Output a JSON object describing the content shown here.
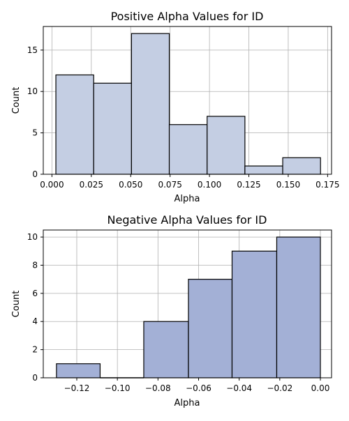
{
  "chart_data": [
    {
      "type": "bar",
      "title": "Positive Alpha Values for ID",
      "xlabel": "Alpha",
      "ylabel": "Count",
      "xlim": [
        -0.0055,
        0.1775
      ],
      "ylim": [
        0,
        17.85
      ],
      "xticks": [
        0.0,
        0.025,
        0.05,
        0.075,
        0.1,
        0.125,
        0.15,
        0.175
      ],
      "xtick_labels": [
        "0.000",
        "0.025",
        "0.050",
        "0.075",
        "0.100",
        "0.125",
        "0.150",
        "0.175"
      ],
      "yticks": [
        0,
        5,
        10,
        15
      ],
      "ytick_labels": [
        "0",
        "5",
        "10",
        "15"
      ],
      "grid": true,
      "bar_color": "#c4cee3",
      "bins": [
        {
          "x0": 0.0025,
          "x1": 0.0265,
          "value": 12
        },
        {
          "x0": 0.0265,
          "x1": 0.0505,
          "value": 11
        },
        {
          "x0": 0.0505,
          "x1": 0.0745,
          "value": 17
        },
        {
          "x0": 0.0745,
          "x1": 0.0985,
          "value": 6
        },
        {
          "x0": 0.0985,
          "x1": 0.1225,
          "value": 7
        },
        {
          "x0": 0.1225,
          "x1": 0.1465,
          "value": 1
        },
        {
          "x0": 0.1465,
          "x1": 0.1705,
          "value": 2
        }
      ]
    },
    {
      "type": "bar",
      "title": "Negative Alpha Values for ID",
      "xlabel": "Alpha",
      "ylabel": "Count",
      "xlim": [
        -0.1365,
        0.0055
      ],
      "ylim": [
        0,
        10.5
      ],
      "xticks": [
        -0.12,
        -0.1,
        -0.08,
        -0.06,
        -0.04,
        -0.02,
        0.0
      ],
      "xtick_labels": [
        "−0.12",
        "−0.10",
        "−0.08",
        "−0.06",
        "−0.04",
        "−0.02",
        "0.00"
      ],
      "yticks": [
        0,
        2,
        4,
        6,
        8,
        10
      ],
      "ytick_labels": [
        "0",
        "2",
        "4",
        "6",
        "8",
        "10"
      ],
      "grid": true,
      "bar_color": "#a3b0d6",
      "bins": [
        {
          "x0": -0.13,
          "x1": -0.1085,
          "value": 1
        },
        {
          "x0": -0.1085,
          "x1": -0.087,
          "value": 0
        },
        {
          "x0": -0.087,
          "x1": -0.065,
          "value": 4
        },
        {
          "x0": -0.065,
          "x1": -0.0435,
          "value": 7
        },
        {
          "x0": -0.0435,
          "x1": -0.0215,
          "value": 9
        },
        {
          "x0": -0.0215,
          "x1": 0.0,
          "value": 10
        }
      ]
    }
  ]
}
